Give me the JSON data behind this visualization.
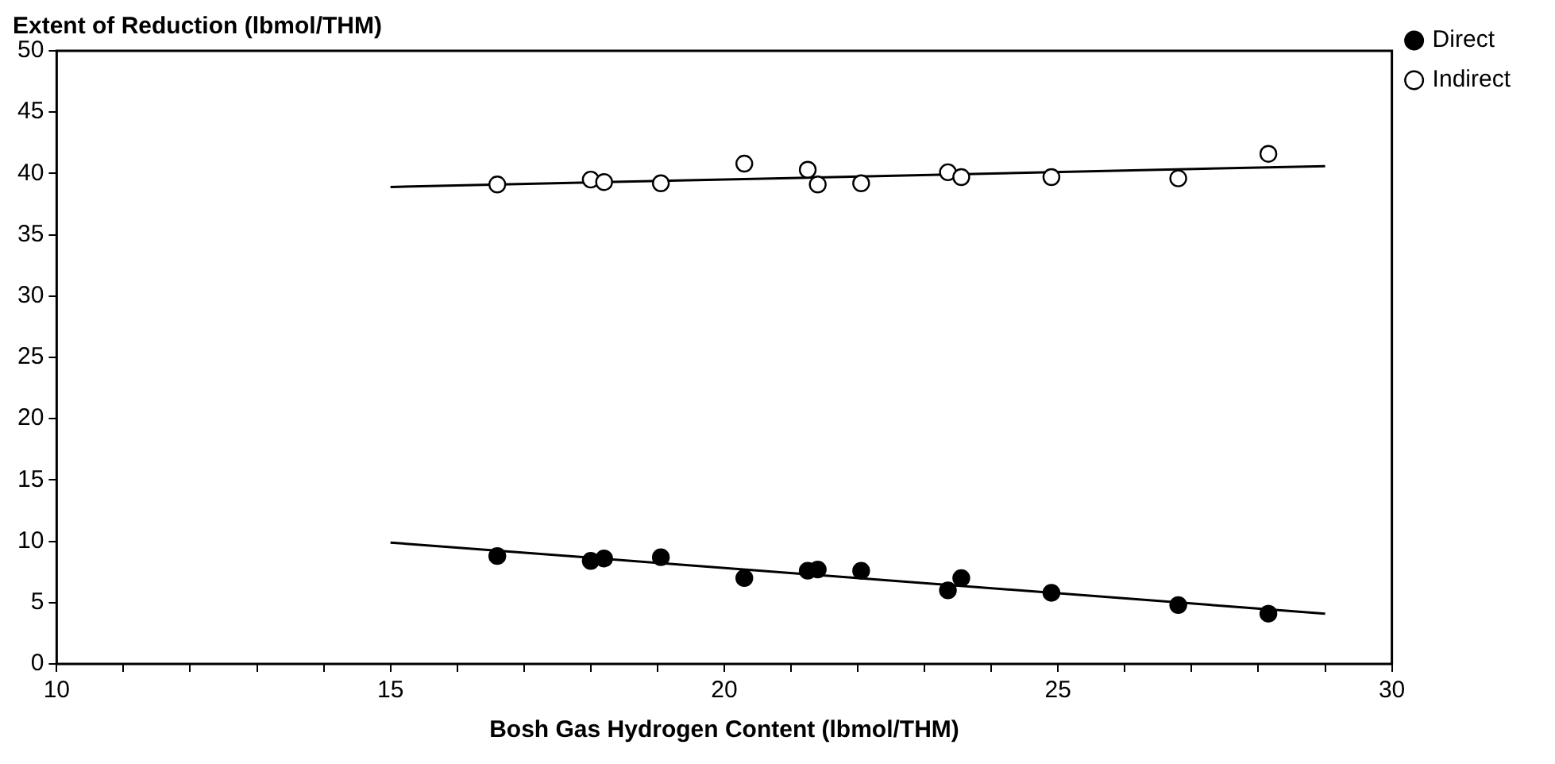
{
  "chart_data": {
    "type": "scatter",
    "ylabel": "Extent of Reduction (lbmol/THM)",
    "xlabel": "Bosh Gas Hydrogen Content (lbmol/THM)",
    "xlim": [
      10,
      30
    ],
    "ylim": [
      0,
      50
    ],
    "xticks": [
      10,
      {
        "value": 11,
        "label": null
      },
      {
        "value": 12,
        "label": null
      },
      {
        "value": 13,
        "label": null
      },
      {
        "value": 14,
        "label": null
      },
      15,
      {
        "value": 16,
        "label": null
      },
      {
        "value": 17,
        "label": null
      },
      {
        "value": 18,
        "label": null
      },
      {
        "value": 19,
        "label": null
      },
      20,
      {
        "value": 21,
        "label": null
      },
      {
        "value": 22,
        "label": null
      },
      {
        "value": 23,
        "label": null
      },
      {
        "value": 24,
        "label": null
      },
      25,
      {
        "value": 26,
        "label": null
      },
      {
        "value": 27,
        "label": null
      },
      {
        "value": 28,
        "label": null
      },
      {
        "value": 29,
        "label": null
      },
      30
    ],
    "yticks": [
      0,
      5,
      10,
      15,
      20,
      25,
      30,
      35,
      40,
      45,
      50
    ],
    "grid": false,
    "legend": "right",
    "marker": "circle",
    "series": [
      {
        "name": "Direct",
        "color": "#000000",
        "x": [
          16.6,
          18.0,
          18.2,
          19.05,
          20.3,
          21.25,
          21.4,
          22.05,
          23.35,
          23.55,
          24.9,
          26.8,
          28.15
        ],
        "values": [
          8.8,
          8.4,
          8.6,
          8.7,
          7.0,
          7.6,
          7.7,
          7.6,
          6.0,
          7.0,
          5.8,
          4.8,
          4.1
        ]
      },
      {
        "name": "Indirect",
        "color": "#ffffff",
        "x": [
          16.6,
          18.0,
          18.2,
          19.05,
          20.3,
          21.25,
          21.4,
          22.05,
          23.35,
          23.55,
          24.9,
          26.8,
          28.15
        ],
        "values": [
          39.1,
          39.5,
          39.3,
          39.2,
          40.8,
          40.3,
          39.1,
          39.2,
          40.1,
          39.7,
          39.7,
          39.6,
          41.6
        ]
      },
      {
        "type": "line",
        "color": "#000000",
        "marker": "none",
        "x": [
          15,
          29
        ],
        "values": [
          9.9,
          4.1
        ]
      },
      {
        "type": "line",
        "color": "#000000",
        "marker": "none",
        "x": [
          15,
          29
        ],
        "values": [
          38.9,
          40.6
        ]
      }
    ]
  }
}
